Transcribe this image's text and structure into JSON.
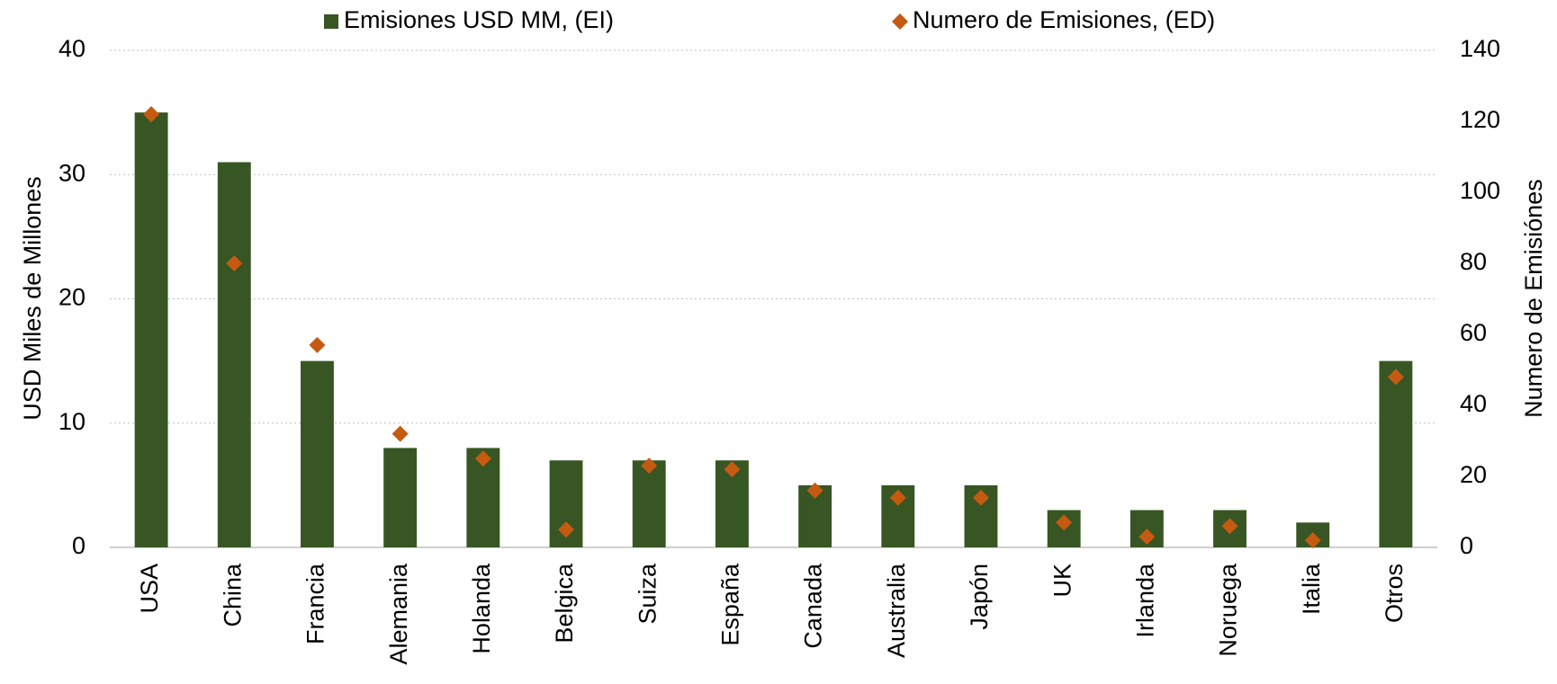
{
  "chart_data": {
    "type": "bar_scatter",
    "categories": [
      "USA",
      "China",
      "Francia",
      "Alemania",
      "Holanda",
      "Belgica",
      "Suiza",
      "España",
      "Canada",
      "Australia",
      "Japón",
      "UK",
      "Irlanda",
      "Noruega",
      "Italia",
      "Otros"
    ],
    "series": [
      {
        "name": "Emisiones USD MM, (EI)",
        "color": "#375623",
        "type": "bar",
        "axis": "y",
        "values": [
          35,
          31,
          15,
          8,
          8,
          7,
          7,
          7,
          5,
          5,
          5,
          3,
          3,
          3,
          2,
          15
        ]
      },
      {
        "name": "Numero de Emisiones, (ED)",
        "color": "#c55a11",
        "type": "scatter",
        "axis": "y2",
        "values": [
          122,
          80,
          57,
          32,
          25,
          5,
          23,
          22,
          16,
          14,
          14,
          7,
          3,
          6,
          2,
          48
        ]
      }
    ],
    "y_label": "USD Miles de Millones",
    "y2_label": "Numero de Emisiónes",
    "ylim": [
      0,
      40
    ],
    "yticks": [
      0,
      10,
      20,
      30,
      40
    ],
    "y2lim": [
      0,
      140
    ],
    "y2ticks": [
      0,
      20,
      40,
      60,
      80,
      100,
      120,
      140
    ],
    "grid": true,
    "legend": "top"
  }
}
